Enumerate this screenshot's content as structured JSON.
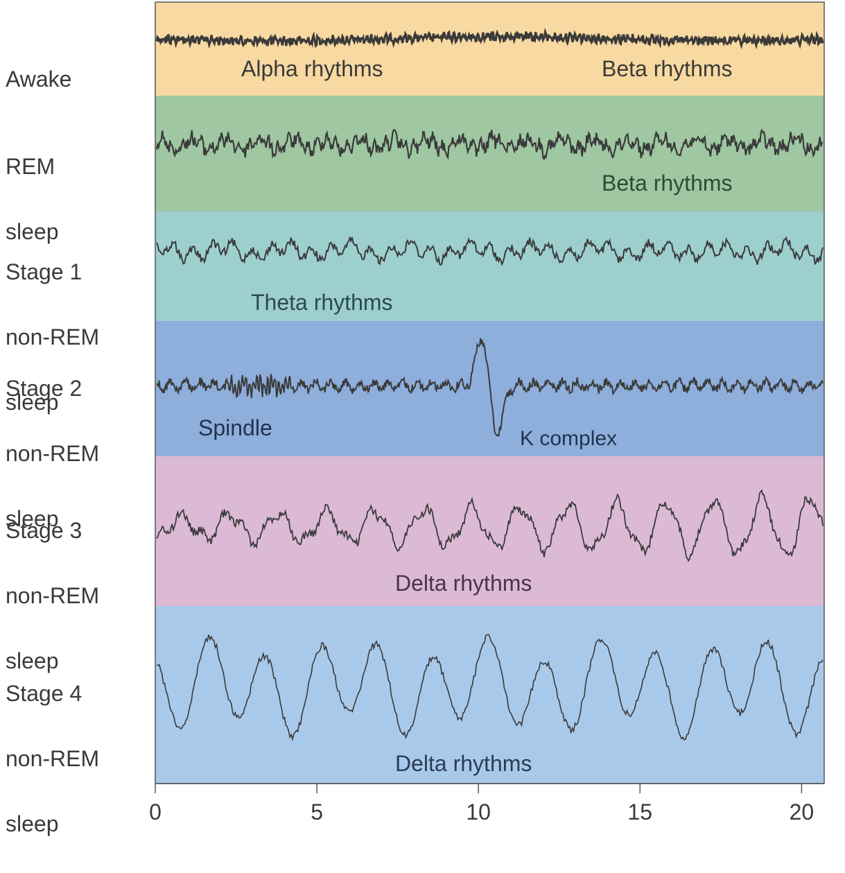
{
  "bands": [
    {
      "stage_lines": [
        "Awake"
      ],
      "annotations": [
        "Alpha rhythms",
        "Beta rhythms"
      ],
      "color": "#f7d9a1"
    },
    {
      "stage_lines": [
        "REM",
        "sleep"
      ],
      "annotations": [
        "Beta rhythms"
      ],
      "color": "#9fc7a2"
    },
    {
      "stage_lines": [
        "Stage 1",
        "non-REM",
        "sleep"
      ],
      "annotations": [
        "Theta rhythms"
      ],
      "color": "#9ecfcf"
    },
    {
      "stage_lines": [
        "Stage 2",
        "non-REM",
        "sleep"
      ],
      "annotations": [
        "Spindle",
        "K complex"
      ],
      "color": "#8eaedb"
    },
    {
      "stage_lines": [
        "Stage 3",
        "non-REM",
        "sleep"
      ],
      "annotations": [
        "Delta rhythms"
      ],
      "color": "#dcbad6"
    },
    {
      "stage_lines": [
        "Stage 4",
        "non-REM",
        "sleep"
      ],
      "annotations": [
        "Delta rhythms"
      ],
      "color": "#a9c9ea"
    }
  ],
  "x_axis": {
    "min": 0,
    "max": 20.7,
    "ticks": [
      "0",
      "5",
      "10",
      "15",
      "20"
    ]
  },
  "trace_color": "#3a3a3a"
}
